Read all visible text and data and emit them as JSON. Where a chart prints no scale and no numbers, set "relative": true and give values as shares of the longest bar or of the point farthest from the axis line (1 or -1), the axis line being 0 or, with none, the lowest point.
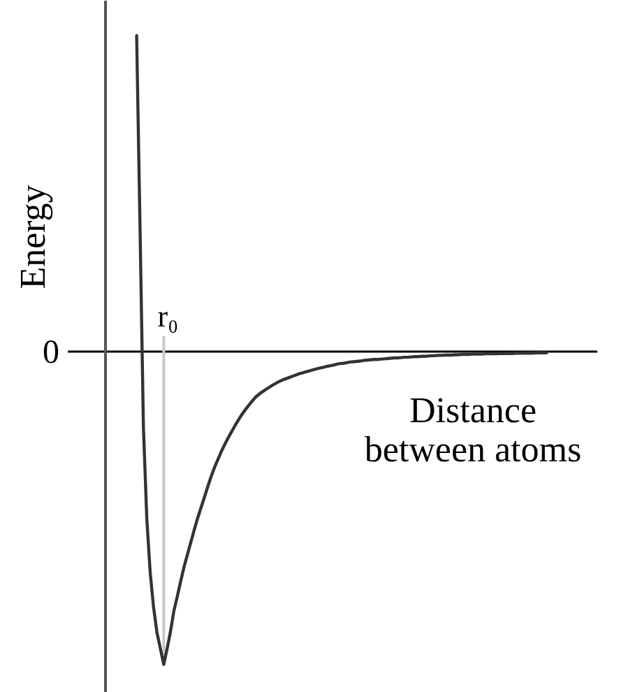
{
  "chart_data": {
    "type": "line",
    "relative": true,
    "ylabel": "Energy",
    "xlabel": "Distance between atoms",
    "categories": [
      null,
      null,
      null,
      null,
      null,
      null,
      null,
      null,
      null,
      null,
      null,
      null,
      null,
      null,
      null,
      null,
      null,
      null,
      null,
      null,
      null,
      null,
      null,
      null,
      null,
      null,
      null,
      null,
      null,
      null,
      null,
      null,
      null,
      null,
      null,
      null,
      null,
      null,
      null,
      null,
      null,
      null,
      null,
      null,
      null,
      null,
      null,
      null,
      null,
      null,
      null,
      null,
      null,
      null,
      null,
      null,
      null,
      null,
      null,
      null,
      null,
      null,
      null,
      null,
      null,
      null,
      null,
      null,
      null,
      null,
      null,
      null,
      null,
      null,
      null,
      null,
      null,
      null,
      null,
      null,
      null,
      null,
      null,
      null,
      null,
      null,
      null,
      null,
      null,
      null,
      null,
      null,
      null,
      null,
      null,
      null,
      null,
      null,
      null,
      null,
      null,
      null,
      null,
      null,
      null,
      null,
      null,
      null,
      null,
      null,
      null,
      null,
      null,
      null,
      null,
      null,
      null,
      null,
      null,
      null,
      null,
      null
    ],
    "series": [
      {
        "color": "#333333",
        "values": [
          1.0,
          0.39,
          -0.24,
          -0.53,
          -0.7,
          -0.81,
          -0.89,
          -0.94,
          -0.99,
          -0.94,
          -0.885,
          -0.82,
          -0.775,
          -0.727,
          -0.681,
          -0.642,
          -0.603,
          -0.564,
          -0.527,
          -0.494,
          -0.461,
          -0.427,
          -0.395,
          -0.366,
          -0.341,
          -0.316,
          -0.294,
          -0.273,
          -0.254,
          -0.235,
          -0.217,
          -0.2,
          -0.185,
          -0.171,
          -0.158,
          -0.145,
          -0.136,
          -0.128,
          -0.121,
          -0.114,
          -0.107,
          -0.101,
          -0.095,
          -0.09,
          -0.086,
          -0.082,
          -0.078,
          -0.074,
          -0.07,
          -0.067,
          -0.064,
          -0.061,
          -0.058,
          -0.055,
          -0.052,
          -0.05,
          -0.047,
          -0.045,
          -0.043,
          -0.04,
          -0.038,
          -0.037,
          -0.035,
          -0.033,
          -0.032,
          -0.031,
          -0.03,
          -0.028,
          -0.027,
          -0.026,
          -0.025,
          -0.025,
          -0.024,
          -0.023,
          -0.022,
          -0.021,
          -0.02,
          -0.02,
          -0.019,
          -0.018,
          -0.018,
          -0.017,
          -0.016,
          -0.016,
          -0.015,
          -0.015,
          -0.014,
          -0.013,
          -0.013,
          -0.012,
          -0.012,
          -0.011,
          -0.011,
          -0.011,
          -0.01,
          -0.01,
          -0.009,
          -0.009,
          -0.009,
          -0.008,
          -0.008,
          -0.008,
          -0.008,
          -0.007,
          -0.007,
          -0.007,
          -0.007,
          -0.006,
          -0.006,
          -0.006,
          -0.006,
          -0.006,
          -0.005,
          -0.005,
          -0.005,
          -0.005,
          -0.005,
          -0.005,
          -0.004,
          -0.004,
          -0.004,
          -0.004
        ]
      }
    ],
    "ref_lines": [
      {
        "axis": "y",
        "value": 0,
        "label": "0",
        "color": "#000000"
      }
    ],
    "annotations": [
      {
        "text": "r₀",
        "y": -0.99
      }
    ]
  }
}
